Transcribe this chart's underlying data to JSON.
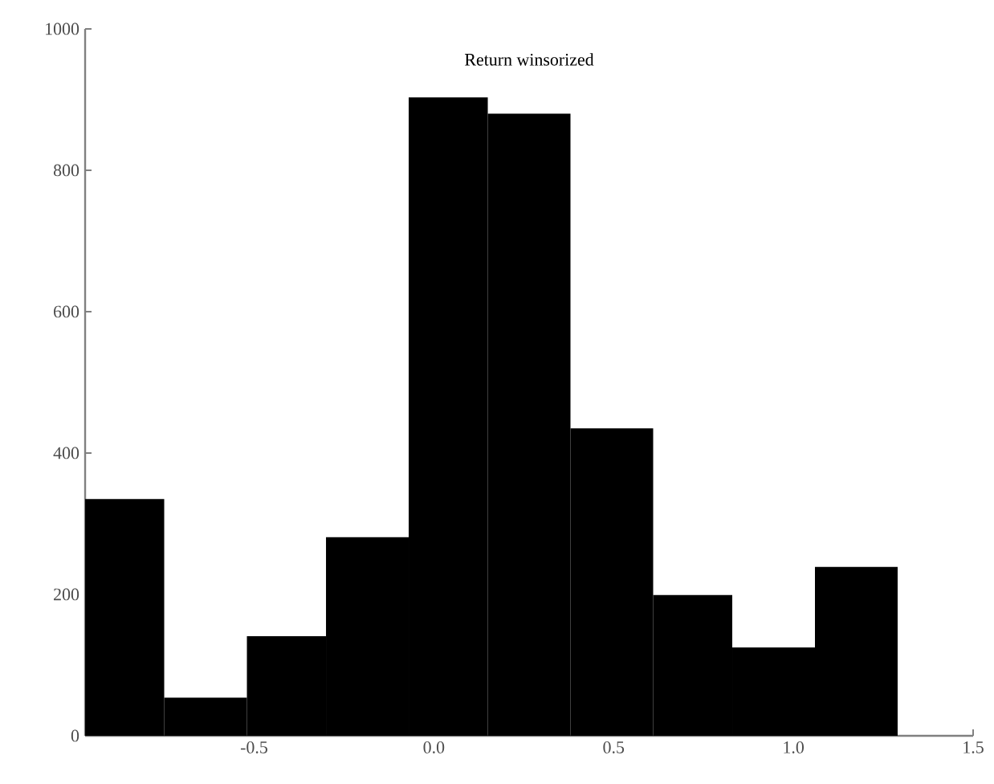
{
  "chart_data": {
    "type": "histogram",
    "title": "Return winsorized",
    "bins": [
      -0.97,
      -0.75,
      -0.52,
      -0.3,
      -0.07,
      0.15,
      0.38,
      0.61,
      0.83,
      1.06,
      1.29
    ],
    "values": [
      335,
      54,
      141,
      281,
      903,
      880,
      435,
      199,
      125,
      239
    ],
    "color": "#000000",
    "xlim": [
      -0.97,
      1.5
    ],
    "ylim": [
      0,
      1000
    ],
    "xticks": [
      {
        "value": -0.5,
        "label": "-0.5"
      },
      {
        "value": 0,
        "label": "0.0"
      },
      {
        "value": 0.5,
        "label": "0.5"
      },
      {
        "value": 1,
        "label": "1.0"
      },
      {
        "value": 1.5,
        "label": "1.5"
      }
    ],
    "yticks": [
      0,
      200,
      400,
      600,
      800,
      1000
    ],
    "grid": false
  }
}
